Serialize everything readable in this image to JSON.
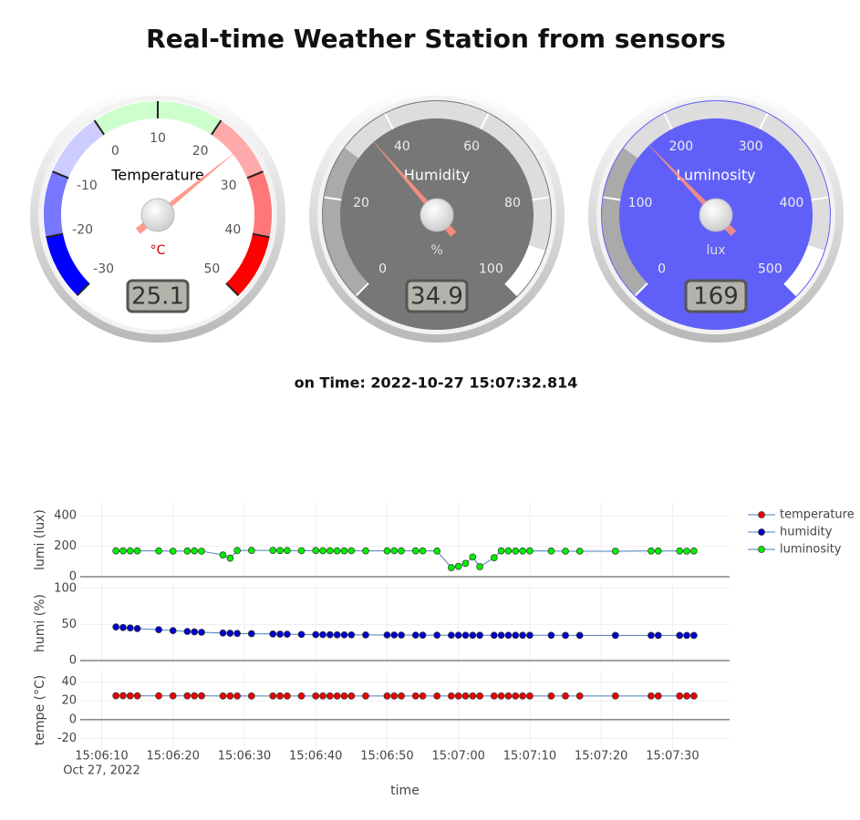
{
  "title": "Real-time Weather Station from sensors",
  "time_label": "on Time: 2022-10-27 15:07:32.814",
  "chart_data": [
    {
      "type": "gauge",
      "title": "Temperature",
      "units": "°C",
      "units_color": "#cc0000",
      "value": 25.1,
      "lim": [
        -30,
        50
      ],
      "ticks": [
        -30,
        -20,
        -10,
        0,
        10,
        20,
        30,
        40,
        50
      ],
      "face_color": "#ffffff",
      "label_color": "#555555",
      "title_color": "#000000",
      "tick_color": "#222222",
      "bands": [
        {
          "from": -30,
          "to": -20,
          "color": "#0000ff"
        },
        {
          "from": -20,
          "to": -10,
          "color": "#7777ff"
        },
        {
          "from": -10,
          "to": 0,
          "color": "#ccccff"
        },
        {
          "from": 0,
          "to": 20,
          "color": "#ccffcc"
        },
        {
          "from": 20,
          "to": 30,
          "color": "#ffaaaa"
        },
        {
          "from": 30,
          "to": 40,
          "color": "#ff7777"
        },
        {
          "from": 40,
          "to": 50,
          "color": "#ff0000"
        }
      ]
    },
    {
      "type": "gauge",
      "title": "Humidity",
      "units": "%",
      "units_color": "#dddddd",
      "value": 34.9,
      "lim": [
        0,
        100
      ],
      "ticks": [
        0,
        20,
        40,
        60,
        80,
        100
      ],
      "face_color": "#777777",
      "label_color": "#eeeeee",
      "title_color": "#ffffff",
      "tick_color": "#ffffff",
      "bands": [
        {
          "from": 0,
          "to": 30,
          "color": "#aaaaaa"
        },
        {
          "from": 30,
          "to": 90,
          "color": "#dddddd"
        },
        {
          "from": 90,
          "to": 100,
          "color": "#ffffff"
        }
      ]
    },
    {
      "type": "gauge",
      "title": "Luminosity",
      "units": "lux",
      "units_color": "#dddddd",
      "value": 169,
      "lim": [
        0,
        500
      ],
      "ticks": [
        0,
        100,
        200,
        300,
        400,
        500
      ],
      "face_color": "#6060f8",
      "label_color": "#eeeeee",
      "title_color": "#ffffff",
      "tick_color": "#ffffff",
      "bands": [
        {
          "from": 0,
          "to": 150,
          "color": "#aaaaaa"
        },
        {
          "from": 150,
          "to": 450,
          "color": "#dddddd"
        },
        {
          "from": 450,
          "to": 500,
          "color": "#ffffff"
        }
      ]
    },
    {
      "type": "line",
      "x_label": "time",
      "date_label": "Oct 27, 2022",
      "line_color": "#4a7fb5",
      "grid": true,
      "xlim": [
        "2022-10-27T15:06:07",
        "2022-10-27T15:07:38"
      ],
      "xticks": [
        {
          "value": "2022-10-27T15:06:10",
          "label": "15:06:10"
        },
        {
          "value": "2022-10-27T15:06:20",
          "label": "15:06:20"
        },
        {
          "value": "2022-10-27T15:06:30",
          "label": "15:06:30"
        },
        {
          "value": "2022-10-27T15:06:40",
          "label": "15:06:40"
        },
        {
          "value": "2022-10-27T15:06:50",
          "label": "15:06:50"
        },
        {
          "value": "2022-10-27T15:07:00",
          "label": "15:07:00"
        },
        {
          "value": "2022-10-27T15:07:10",
          "label": "15:07:10"
        },
        {
          "value": "2022-10-27T15:07:20",
          "label": "15:07:20"
        },
        {
          "value": "2022-10-27T15:07:30",
          "label": "15:07:30"
        }
      ],
      "x": [
        "2022-10-27T15:06:12",
        "2022-10-27T15:06:13",
        "2022-10-27T15:06:14",
        "2022-10-27T15:06:15",
        "2022-10-27T15:06:18",
        "2022-10-27T15:06:20",
        "2022-10-27T15:06:22",
        "2022-10-27T15:06:23",
        "2022-10-27T15:06:24",
        "2022-10-27T15:06:27",
        "2022-10-27T15:06:28",
        "2022-10-27T15:06:29",
        "2022-10-27T15:06:31",
        "2022-10-27T15:06:34",
        "2022-10-27T15:06:35",
        "2022-10-27T15:06:36",
        "2022-10-27T15:06:38",
        "2022-10-27T15:06:40",
        "2022-10-27T15:06:41",
        "2022-10-27T15:06:42",
        "2022-10-27T15:06:43",
        "2022-10-27T15:06:44",
        "2022-10-27T15:06:45",
        "2022-10-27T15:06:47",
        "2022-10-27T15:06:50",
        "2022-10-27T15:06:51",
        "2022-10-27T15:06:52",
        "2022-10-27T15:06:54",
        "2022-10-27T15:06:55",
        "2022-10-27T15:06:57",
        "2022-10-27T15:06:59",
        "2022-10-27T15:07:00",
        "2022-10-27T15:07:01",
        "2022-10-27T15:07:02",
        "2022-10-27T15:07:03",
        "2022-10-27T15:07:05",
        "2022-10-27T15:07:06",
        "2022-10-27T15:07:07",
        "2022-10-27T15:07:08",
        "2022-10-27T15:07:09",
        "2022-10-27T15:07:10",
        "2022-10-27T15:07:13",
        "2022-10-27T15:07:15",
        "2022-10-27T15:07:17",
        "2022-10-27T15:07:22",
        "2022-10-27T15:07:27",
        "2022-10-27T15:07:28",
        "2022-10-27T15:07:31",
        "2022-10-27T15:07:32",
        "2022-10-27T15:07:33"
      ],
      "panels": [
        {
          "y_label": "lumi (lux)",
          "ylim": [
            0,
            485
          ],
          "yticks": [
            0,
            200,
            400
          ]
        },
        {
          "y_label": "humi (%)",
          "ylim": [
            -2.5,
            106
          ],
          "yticks": [
            0,
            50,
            100
          ]
        },
        {
          "y_label": "tempe (°C)",
          "ylim": [
            -32,
            52
          ],
          "yticks": [
            -20,
            0,
            20,
            40
          ]
        }
      ],
      "series": [
        {
          "name": "temperature",
          "color": "#ee0000",
          "panel": 2,
          "values": [
            25.3,
            25.3,
            25.2,
            25.2,
            25.2,
            25.2,
            25.2,
            25.2,
            25.2,
            25.1,
            25.1,
            25.1,
            25.1,
            25.1,
            25.1,
            25.1,
            25.1,
            25.1,
            25.1,
            25.1,
            25.1,
            25.1,
            25.1,
            25.1,
            25.1,
            25.1,
            25.1,
            25.1,
            25.1,
            25.1,
            25.1,
            25.1,
            25.1,
            25.1,
            25.1,
            25.1,
            25.1,
            25.1,
            25.1,
            25.1,
            25.1,
            25.1,
            25.1,
            25.1,
            25.1,
            25.1,
            25.1,
            25.1,
            25.1,
            25.1
          ]
        },
        {
          "name": "humidity",
          "color": "#0000cc",
          "panel": 1,
          "values": [
            46.5,
            45.8,
            45.2,
            44.3,
            42.8,
            41.5,
            40.3,
            39.8,
            39.2,
            38.2,
            37.9,
            37.6,
            37.2,
            36.8,
            36.6,
            36.5,
            36.2,
            36,
            35.9,
            35.8,
            35.7,
            35.6,
            35.6,
            35.5,
            35.4,
            35.4,
            35.3,
            35.3,
            35.2,
            35.2,
            35.1,
            35.1,
            35.1,
            35,
            35,
            35,
            35,
            35,
            35,
            35,
            35,
            35,
            34.9,
            34.9,
            34.9,
            34.9,
            34.9,
            34.9,
            34.9,
            34.9
          ]
        },
        {
          "name": "luminosity",
          "color": "#00ee00",
          "panel": 0,
          "values": [
            170,
            170,
            170,
            170,
            170,
            168,
            169,
            170,
            168,
            143,
            122,
            172,
            173,
            173,
            172,
            172,
            171,
            172,
            171,
            171,
            170,
            170,
            171,
            170,
            170,
            171,
            170,
            170,
            170,
            169,
            60,
            68,
            88,
            130,
            66,
            125,
            170,
            170,
            169,
            169,
            170,
            169,
            168,
            168,
            168,
            169,
            169,
            169,
            168,
            169
          ]
        }
      ]
    }
  ]
}
